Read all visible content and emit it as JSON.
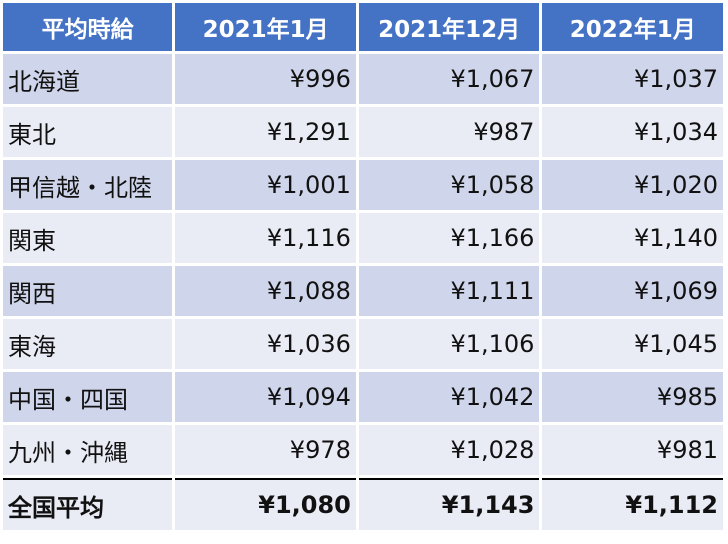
{
  "headers": [
    "平均時給",
    "2021年1月",
    "2021年12月",
    "2022年1月"
  ],
  "rows": [
    {
      "region": "北海道",
      "values": [
        "¥996",
        "¥1,067",
        "¥1,037"
      ]
    },
    {
      "region": "東北",
      "values": [
        "¥1,291",
        "¥987",
        "¥1,034"
      ]
    },
    {
      "region": "甲信越・北陸",
      "values": [
        "¥1,001",
        "¥1,058",
        "¥1,020"
      ]
    },
    {
      "region": "関東",
      "values": [
        "¥1,116",
        "¥1,166",
        "¥1,140"
      ]
    },
    {
      "region": "関西",
      "values": [
        "¥1,088",
        "¥1,111",
        "¥1,069"
      ]
    },
    {
      "region": "東海",
      "values": [
        "¥1,036",
        "¥1,106",
        "¥1,045"
      ]
    },
    {
      "region": "中国・四国",
      "values": [
        "¥1,094",
        "¥1,042",
        "¥985"
      ]
    },
    {
      "region": "九州・沖縄",
      "values": [
        "¥978",
        "¥1,028",
        "¥981"
      ]
    }
  ],
  "total": {
    "region": "全国平均",
    "values": [
      "¥1,080",
      "¥1,143",
      "¥1,112"
    ]
  },
  "colors": {
    "header_bg": "#4472c4",
    "row_dark": "#cfd5ea",
    "row_light": "#e9ebf5"
  }
}
